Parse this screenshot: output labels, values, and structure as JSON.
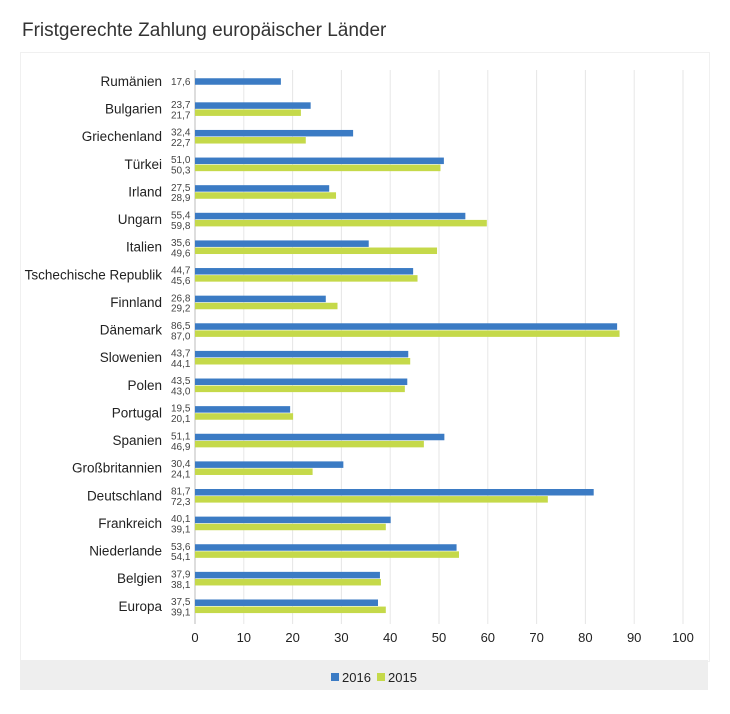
{
  "chart_data": {
    "type": "bar",
    "orientation": "horizontal",
    "title": "Fristgerechte Zahlung europäischer Länder",
    "categories": [
      "Rumänien",
      "Bulgarien",
      "Griechenland",
      "Türkei",
      "Irland",
      "Ungarn",
      "Italien",
      "Tschechische Republik",
      "Finnland",
      "Dänemark",
      "Slowenien",
      "Polen",
      "Portugal",
      "Spanien",
      "Großbritannien",
      "Deutschland",
      "Frankreich",
      "Niederlande",
      "Belgien",
      "Europa"
    ],
    "series": [
      {
        "name": "2016",
        "color": "#3b7bc4",
        "values": [
          17.6,
          23.7,
          32.4,
          51.0,
          27.5,
          55.4,
          35.6,
          44.7,
          26.8,
          86.5,
          43.7,
          43.5,
          19.5,
          51.1,
          30.4,
          81.7,
          40.1,
          53.6,
          37.9,
          37.5
        ],
        "labels": [
          "17,6",
          "23,7",
          "32,4",
          "51,0",
          "27,5",
          "55,4",
          "35,6",
          "44,7",
          "26,8",
          "86,5",
          "43,7",
          "43,5",
          "19,5",
          "51,1",
          "30,4",
          "81,7",
          "40,1",
          "53,6",
          "37,9",
          "37,5"
        ]
      },
      {
        "name": "2015",
        "color": "#c5d94a",
        "values": [
          null,
          21.7,
          22.7,
          50.3,
          28.9,
          59.8,
          49.6,
          45.6,
          29.2,
          87.0,
          44.1,
          43.0,
          20.1,
          46.9,
          24.1,
          72.3,
          39.1,
          54.1,
          38.1,
          39.1
        ],
        "labels": [
          "",
          "21,7",
          "22,7",
          "50,3",
          "28,9",
          "59,8",
          "49,6",
          "45,6",
          "29,2",
          "87,0",
          "44,1",
          "43,0",
          "20,1",
          "46,9",
          "24,1",
          "72,3",
          "39,1",
          "54,1",
          "38,1",
          "39,1"
        ]
      }
    ],
    "xlim": [
      0,
      100
    ],
    "xticks": [
      0,
      10,
      20,
      30,
      40,
      50,
      60,
      70,
      80,
      90,
      100
    ],
    "xlabel": "",
    "ylabel": "",
    "grid": true,
    "legend_position": "bottom"
  }
}
